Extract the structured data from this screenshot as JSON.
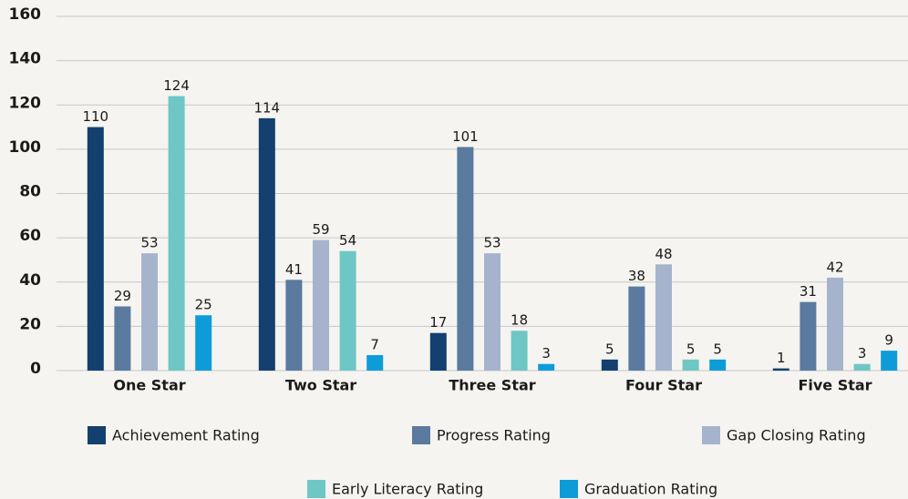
{
  "chart_data": {
    "type": "bar",
    "categories": [
      "One Star",
      "Two Star",
      "Three Star",
      "Four Star",
      "Five Star"
    ],
    "series": [
      {
        "name": "Achievement Rating",
        "color": "#13406f",
        "values": [
          110,
          114,
          17,
          5,
          1
        ]
      },
      {
        "name": "Progress Rating",
        "color": "#5a7aa0",
        "values": [
          29,
          41,
          101,
          38,
          31
        ]
      },
      {
        "name": "Gap Closing Rating",
        "color": "#a5b4cc",
        "values": [
          53,
          59,
          53,
          48,
          42
        ]
      },
      {
        "name": "Early Literacy Rating",
        "color": "#6ec7c4",
        "values": [
          124,
          54,
          18,
          5,
          3
        ]
      },
      {
        "name": "Graduation Rating",
        "color": "#0e9cd8",
        "values": [
          25,
          7,
          3,
          5,
          9
        ]
      }
    ],
    "ylim": [
      0,
      160
    ],
    "yticks": [
      0,
      20,
      40,
      60,
      80,
      100,
      120,
      140,
      160
    ],
    "grid": true,
    "legend": "bottom"
  }
}
